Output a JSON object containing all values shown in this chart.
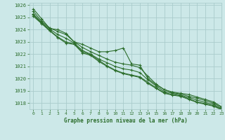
{
  "background_color": "#cce8e8",
  "plot_bg_color": "#cce8e8",
  "grid_color": "#aacccc",
  "line_color": "#2d6e2d",
  "marker_color": "#2d6e2d",
  "xlabel": "Graphe pression niveau de la mer (hPa)",
  "xlim": [
    -0.5,
    23
  ],
  "ylim": [
    1017.5,
    1026.2
  ],
  "yticks": [
    1018,
    1019,
    1020,
    1021,
    1022,
    1023,
    1024,
    1025,
    1026
  ],
  "xticks": [
    0,
    1,
    2,
    3,
    4,
    5,
    6,
    7,
    8,
    9,
    10,
    11,
    12,
    13,
    14,
    15,
    16,
    17,
    18,
    19,
    20,
    21,
    22,
    23
  ],
  "series": [
    [
      1025.7,
      1024.9,
      1024.1,
      1024.0,
      1023.7,
      1023.0,
      1022.8,
      1022.5,
      1022.2,
      1022.2,
      1022.3,
      1022.5,
      1021.2,
      1021.1,
      1020.0,
      1019.5,
      1019.1,
      1018.9,
      1018.8,
      1018.7,
      1018.5,
      1018.3,
      1018.1,
      1017.7
    ],
    [
      1025.5,
      1024.7,
      1024.15,
      1023.85,
      1023.6,
      1023.0,
      1022.55,
      1022.2,
      1021.9,
      1021.6,
      1021.35,
      1021.2,
      1021.1,
      1020.9,
      1020.2,
      1019.55,
      1019.1,
      1018.85,
      1018.75,
      1018.55,
      1018.4,
      1018.2,
      1018.0,
      1017.65
    ],
    [
      1025.3,
      1024.6,
      1024.05,
      1023.6,
      1023.3,
      1022.9,
      1022.3,
      1022.0,
      1021.6,
      1021.3,
      1021.0,
      1020.8,
      1020.7,
      1020.5,
      1019.9,
      1019.4,
      1018.95,
      1018.8,
      1018.65,
      1018.45,
      1018.25,
      1018.05,
      1017.9,
      1017.55
    ],
    [
      1025.2,
      1024.55,
      1023.95,
      1023.4,
      1023.0,
      1022.85,
      1022.2,
      1021.95,
      1021.5,
      1021.05,
      1020.7,
      1020.45,
      1020.3,
      1020.15,
      1019.7,
      1019.25,
      1018.85,
      1018.7,
      1018.6,
      1018.35,
      1018.1,
      1017.95,
      1017.8,
      1017.5
    ],
    [
      1025.1,
      1024.5,
      1023.9,
      1023.35,
      1022.9,
      1022.8,
      1022.1,
      1021.9,
      1021.4,
      1021.0,
      1020.65,
      1020.4,
      1020.25,
      1020.1,
      1019.6,
      1019.2,
      1018.8,
      1018.65,
      1018.55,
      1018.3,
      1018.05,
      1017.9,
      1017.75,
      1017.45
    ]
  ]
}
